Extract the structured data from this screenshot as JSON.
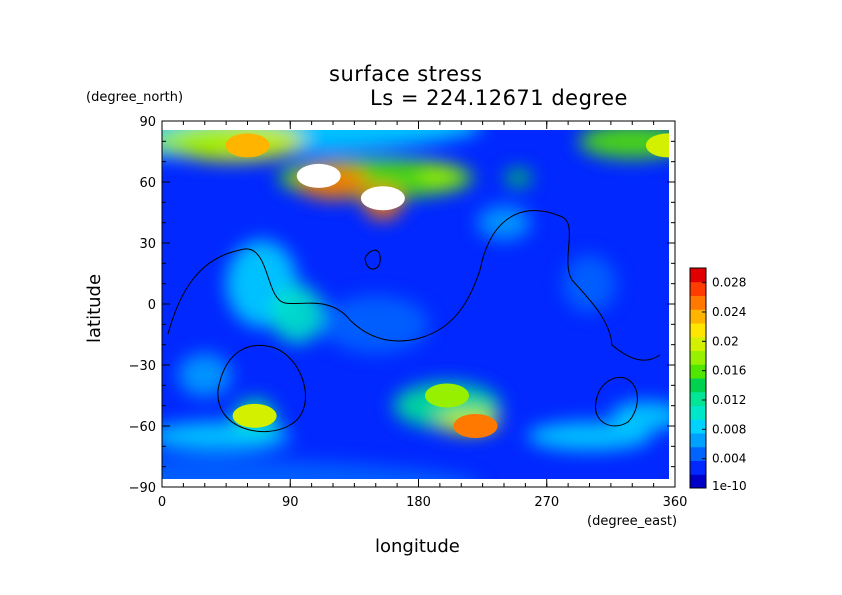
{
  "chart_data": {
    "type": "heatmap",
    "title": "surface stress",
    "subtitle": "Ls = 224.12671 degree",
    "xlabel": "longitude",
    "ylabel": "latitude",
    "x_unit": "(degree_east)",
    "y_unit": "(degree_north)",
    "xlim": [
      0,
      360
    ],
    "ylim": [
      -90,
      90
    ],
    "x_ticks": [
      "0",
      "90",
      "180",
      "270",
      "360"
    ],
    "y_ticks": [
      "90",
      "60",
      "30",
      "0",
      "−30",
      "−60",
      "−90"
    ],
    "colorbar": {
      "labels": [
        "0.028",
        "0.024",
        "0.02",
        "0.016",
        "0.012",
        "0.008",
        "0.004",
        "1e-10"
      ],
      "range": [
        0,
        0.03
      ],
      "colors": [
        "#0000c8",
        "#0028ff",
        "#0064ff",
        "#00a0ff",
        "#00d2ff",
        "#00e6c8",
        "#00e696",
        "#00d250",
        "#50e600",
        "#96f000",
        "#d2f000",
        "#ffe600",
        "#ffb400",
        "#ff7800",
        "#ff3c00",
        "#e10000"
      ]
    },
    "hotspots": [
      {
        "lon": 110,
        "lat": 63,
        "value": 0.032
      },
      {
        "lon": 155,
        "lat": 52,
        "value": 0.032
      },
      {
        "lon": 220,
        "lat": -60,
        "value": 0.026
      },
      {
        "lon": 60,
        "lat": 78,
        "value": 0.024
      },
      {
        "lon": 200,
        "lat": -45,
        "value": 0.018
      },
      {
        "lon": 65,
        "lat": -55,
        "value": 0.02
      },
      {
        "lon": 355,
        "lat": 78,
        "value": 0.02
      }
    ]
  }
}
